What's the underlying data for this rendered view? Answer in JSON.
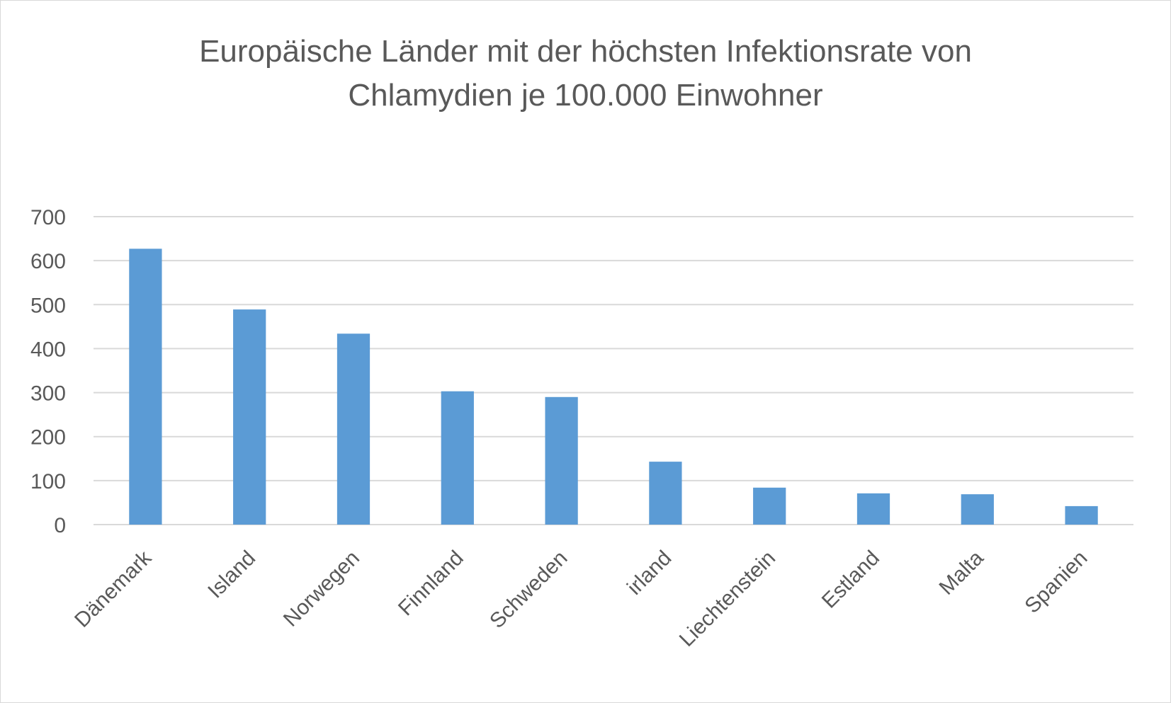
{
  "chart_data": {
    "type": "bar",
    "title_line1": "Europäische Länder mit der höchsten Infektionsrate von",
    "title_line2": "Chlamydien je 100.000 Einwohner",
    "categories": [
      "Dänemark",
      "Island",
      "Norwegen",
      "Finnland",
      "Schweden",
      "irland",
      "Liechtenstein",
      "Estland",
      "Malta",
      "Spanien"
    ],
    "values": [
      627,
      489,
      434,
      303,
      290,
      143,
      84,
      71,
      69,
      42
    ],
    "ylim": [
      0,
      700
    ],
    "yticks": [
      0,
      100,
      200,
      300,
      400,
      500,
      600,
      700
    ],
    "grid": true,
    "legend": "none",
    "bar_color": "#5b9bd5",
    "grid_color": "#d9d9d9"
  }
}
